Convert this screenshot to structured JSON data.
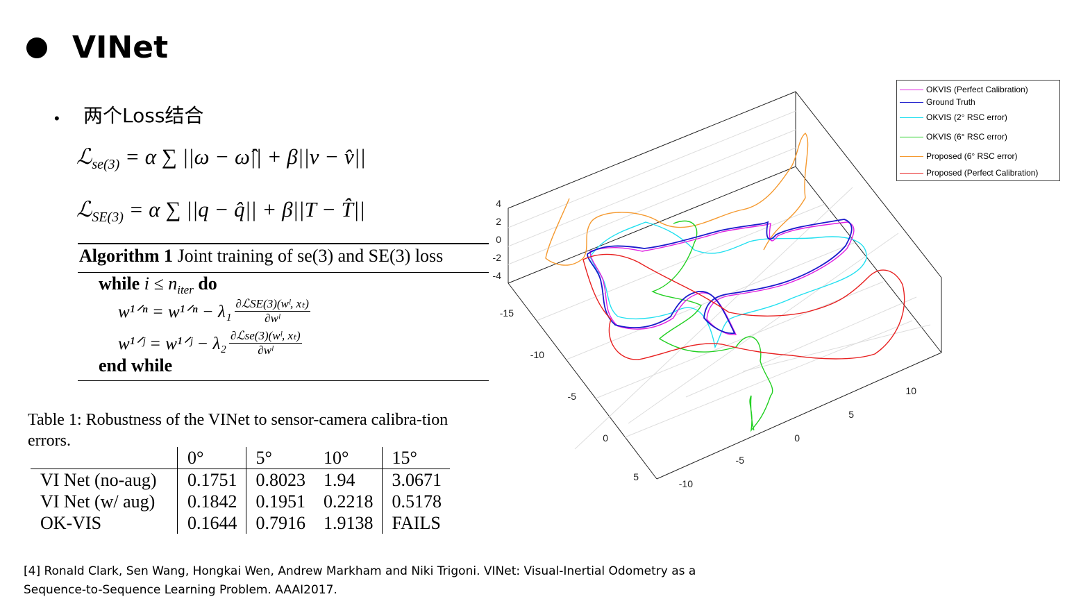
{
  "slide": {
    "title": "VINet",
    "subtitle": "两个Loss结合",
    "equations": {
      "eq1_lhs": "ℒ",
      "eq1_lhs_sub": "se(3)",
      "eq1_rhs": "= α ∑ ||ω − ω̂|| + β||v − v̂||",
      "eq2_lhs": "ℒ",
      "eq2_lhs_sub": "SE(3)",
      "eq2_rhs": "= α ∑ ||q − q̂|| + β||T − T̂||"
    },
    "algorithm": {
      "label": "Algorithm 1",
      "title": "Joint training of se(3) and SE(3) loss",
      "while_kw": "while",
      "while_cond": "i ≤ n",
      "while_cond_sub": "iter",
      "do_kw": "do",
      "update1_lhs": "w¹ᐟⁿ = w¹ᐟⁿ − λ₁",
      "update1_num": "∂ℒSE(3)(wˡ, xₜ)",
      "update1_den": "∂wˡ",
      "update2_lhs": "w¹ᐟʲ = w¹ᐟʲ − λ₂",
      "update2_num": "∂ℒse(3)(wˡ, xₜ)",
      "update2_den": "∂wˡ",
      "end_kw": "end while"
    },
    "table": {
      "caption": "Table 1: Robustness of the VINet to sensor-camera calibra-tion errors.",
      "headers": [
        "",
        "0°",
        "5°",
        "10°",
        "15°"
      ],
      "rows": [
        [
          "VI Net (no-aug)",
          "0.1751",
          "0.8023",
          "1.94",
          "3.0671"
        ],
        [
          "VI Net (w/ aug)",
          "0.1842",
          "0.1951",
          "0.2218",
          "0.5178"
        ],
        [
          "OK-VIS",
          "0.1644",
          "0.7916",
          "1.9138",
          "FAILS"
        ]
      ]
    },
    "reference_line1": "[4] Ronald Clark, Sen Wang, Hongkai Wen, Andrew Markham and Niki Trigoni. VINet: Visual-Inertial Odometry as a",
    "reference_line2": "Sequence-to-Sequence Learning Problem.  AAAI2017."
  },
  "chart_data": {
    "type": "line",
    "projection": "3d",
    "zlabel_ticks": [
      "4",
      "2",
      "0",
      "-2",
      "-4"
    ],
    "axis1_ticks": [
      "-15",
      "-10",
      "-5",
      "0",
      "5"
    ],
    "axis2_ticks": [
      "-10",
      "-5",
      "0",
      "5",
      "10"
    ],
    "grid": true,
    "legend_position": "top-right",
    "series": [
      {
        "name": "OKVIS (Perfect Calibration)",
        "color": "#e020e0"
      },
      {
        "name": "Ground Truth",
        "color": "#1a1acc"
      },
      {
        "name": "OKVIS (2° RSC error)",
        "name_main": "OKVIS (2",
        "name_sup": "°",
        "name_r": " R",
        "name_sub": "SC",
        "name_end": " error)",
        "color": "#22e0f0"
      },
      {
        "name": "OKVIS (6° RSC error)",
        "name_main": "OKVIS (6",
        "name_sup": "°",
        "name_r": " R",
        "name_sub": "SC",
        "name_end": " error)",
        "color": "#22d022"
      },
      {
        "name": "Proposed (6° RSC error)",
        "name_main": "Proposed (6",
        "name_sup": "°",
        "name_r": " R",
        "name_sub": "SC",
        "name_end": " error)",
        "color": "#f59a30"
      },
      {
        "name": "Proposed (Perfect Calibration)",
        "color": "#e82020"
      }
    ]
  }
}
